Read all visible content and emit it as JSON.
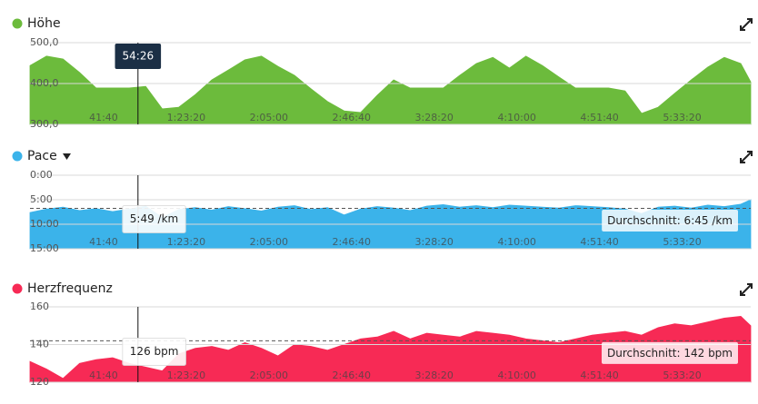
{
  "chart_data": [
    {
      "type": "area",
      "title": "Höhe",
      "color": "#6cbb3c",
      "x": [
        0,
        500,
        1000,
        1500,
        2000,
        2500,
        3000,
        3500,
        4000,
        4500,
        5000,
        5500,
        6000,
        6500,
        7000,
        7500,
        8000,
        8500,
        9000,
        9500,
        10000,
        10500,
        11000,
        11500,
        12000,
        12500,
        13000,
        13500,
        14000,
        14500,
        15000,
        15500,
        16000,
        16500,
        17000,
        17500,
        18000,
        18500,
        19000,
        19500,
        20000,
        20500,
        21000,
        21500,
        21800
      ],
      "values": [
        444,
        467,
        460,
        427,
        389,
        389,
        389,
        393,
        338,
        342,
        373,
        409,
        433,
        458,
        467,
        442,
        420,
        387,
        356,
        333,
        329,
        371,
        409,
        389,
        389,
        389,
        420,
        449,
        464,
        438,
        467,
        444,
        416,
        389,
        389,
        389,
        382,
        327,
        342,
        376,
        409,
        440,
        464,
        449,
        404
      ],
      "xlim": [
        0,
        21800
      ],
      "xticks": [
        {
          "value": 2500,
          "label": "41:40"
        },
        {
          "value": 5000,
          "label": "1:23:20"
        },
        {
          "value": 7500,
          "label": "2:05:00"
        },
        {
          "value": 10000,
          "label": "2:46:40"
        },
        {
          "value": 12500,
          "label": "3:28:20"
        },
        {
          "value": 15000,
          "label": "4:10:00"
        },
        {
          "value": 17500,
          "label": "4:51:40"
        },
        {
          "value": 20000,
          "label": "5:33:20"
        }
      ],
      "ylim": [
        300,
        500
      ],
      "yticks": [
        {
          "value": 300,
          "label": "300,0"
        },
        {
          "value": 400,
          "label": "400,0"
        },
        {
          "value": 500,
          "label": "500,0"
        }
      ],
      "grid": true,
      "cursor": {
        "value": 3266,
        "label": "54:26"
      }
    },
    {
      "type": "area",
      "title": "Pace",
      "color": "#3bb3ea",
      "x": [
        0,
        500,
        1000,
        1500,
        2000,
        2500,
        3000,
        3500,
        4000,
        4500,
        5000,
        5500,
        6000,
        6500,
        7000,
        7500,
        8000,
        8500,
        9000,
        9500,
        10000,
        10500,
        11000,
        11500,
        12000,
        12500,
        13000,
        13500,
        14000,
        14500,
        15000,
        15500,
        16000,
        16500,
        17000,
        17500,
        18000,
        18500,
        19000,
        19500,
        20000,
        20500,
        21000,
        21500,
        21800
      ],
      "values": [
        7.6,
        6.9,
        6.5,
        7.2,
        6.8,
        7.4,
        6.9,
        6.3,
        8.6,
        7.0,
        6.6,
        7.1,
        6.4,
        6.8,
        7.3,
        6.5,
        6.2,
        7.0,
        6.6,
        8.1,
        6.9,
        6.4,
        6.7,
        7.2,
        6.3,
        6.0,
        6.5,
        6.2,
        6.6,
        6.1,
        6.3,
        6.5,
        6.7,
        6.2,
        6.4,
        6.6,
        6.9,
        7.8,
        6.5,
        6.3,
        6.7,
        6.1,
        6.4,
        5.9,
        5.0
      ],
      "xlim": [
        0,
        21800
      ],
      "xticks": [
        {
          "value": 2500,
          "label": "41:40"
        },
        {
          "value": 5000,
          "label": "1:23:20"
        },
        {
          "value": 7500,
          "label": "2:05:00"
        },
        {
          "value": 10000,
          "label": "2:46:40"
        },
        {
          "value": 12500,
          "label": "3:28:20"
        },
        {
          "value": 15000,
          "label": "4:10:00"
        },
        {
          "value": 17500,
          "label": "4:51:40"
        },
        {
          "value": 20000,
          "label": "5:33:20"
        }
      ],
      "ylim": [
        15,
        0
      ],
      "yticks": [
        {
          "value": 0,
          "label": "0:00"
        },
        {
          "value": 5,
          "label": "5:00"
        },
        {
          "value": 10,
          "label": "10:00"
        },
        {
          "value": 15,
          "label": "15:00"
        }
      ],
      "grid": true,
      "tooltip": {
        "value": 5.817,
        "label": "5:49 /km"
      },
      "average": {
        "value": 6.75,
        "label": "Durchschnitt: 6:45 /km"
      }
    },
    {
      "type": "area",
      "title": "Herzfrequenz",
      "color": "#f72a55",
      "x": [
        0,
        500,
        1000,
        1500,
        2000,
        2500,
        3000,
        3500,
        4000,
        4500,
        5000,
        5500,
        6000,
        6500,
        7000,
        7500,
        8000,
        8500,
        9000,
        9500,
        10000,
        10500,
        11000,
        11500,
        12000,
        12500,
        13000,
        13500,
        14000,
        14500,
        15000,
        15500,
        16000,
        16500,
        17000,
        17500,
        18000,
        18500,
        19000,
        19500,
        20000,
        20500,
        21000,
        21500,
        21800
      ],
      "values": [
        131,
        127,
        122,
        130,
        132,
        133,
        130,
        128,
        126,
        135,
        138,
        139,
        137,
        141,
        138,
        134,
        140,
        139,
        137,
        140,
        143,
        144,
        147,
        143,
        146,
        145,
        144,
        147,
        146,
        145,
        143,
        142,
        141,
        143,
        145,
        146,
        147,
        145,
        149,
        151,
        150,
        152,
        154,
        155,
        150
      ],
      "xlim": [
        0,
        21800
      ],
      "xticks": [
        {
          "value": 2500,
          "label": "41:40"
        },
        {
          "value": 5000,
          "label": "1:23:20"
        },
        {
          "value": 7500,
          "label": "2:05:00"
        },
        {
          "value": 10000,
          "label": "2:46:40"
        },
        {
          "value": 12500,
          "label": "3:28:20"
        },
        {
          "value": 15000,
          "label": "4:10:00"
        },
        {
          "value": 17500,
          "label": "4:51:40"
        },
        {
          "value": 20000,
          "label": "5:33:20"
        }
      ],
      "ylim": [
        120,
        160
      ],
      "yticks": [
        120,
        140,
        160
      ],
      "grid": true,
      "tooltip": {
        "value": 126,
        "label": "126 bpm"
      },
      "average": {
        "value": 142,
        "label": "Durchschnitt: 142 bpm"
      }
    }
  ]
}
